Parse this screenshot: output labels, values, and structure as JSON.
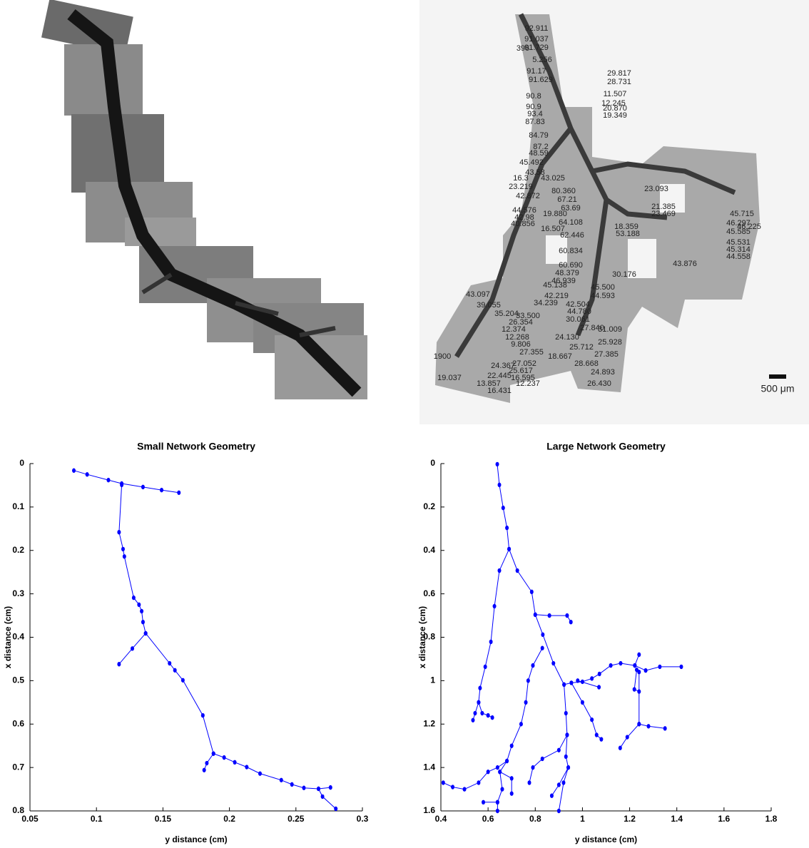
{
  "micrographs": {
    "labels": [
      "92.911",
      "91.037",
      "91.729",
      "396",
      "5.256",
      "91.17",
      "91.629",
      "29.817",
      "28.731",
      "11.507",
      "90.8",
      "12.245",
      "20.870",
      "19.349",
      "90.9",
      "93.4",
      "87.83",
      "84.79",
      "87.2",
      "48.59",
      "45.492",
      "43.58",
      "43.025",
      "16.3",
      "23.219",
      "80.360",
      "67.21",
      "63.69",
      "42.872",
      "44.576",
      "42.98",
      "19.880",
      "40.856",
      "64.108",
      "16.507",
      "62.446",
      "23.093",
      "21.385",
      "23.469",
      "45.715",
      "46.297",
      "46.225",
      "45.585",
      "18.359",
      "53.188",
      "60.834",
      "60.690",
      "48.379",
      "46.939",
      "45.138",
      "45.500",
      "44.593",
      "30.176",
      "45.531",
      "45.314",
      "44.558",
      "43.876",
      "42.219",
      "34.239",
      "42.504",
      "44.780",
      "30.061",
      "43.097",
      "39.055",
      "35.204",
      "33.500",
      "26.354",
      "12.374",
      "12.268",
      "9.806",
      "27.840",
      "31.009",
      "24.130",
      "25.928",
      "25.712",
      "27.355",
      "18.667",
      "27.385",
      "27.052",
      "25.617",
      "24.367",
      "16.595",
      "12.237",
      "28.668",
      "24.893",
      "26.430",
      "22.445",
      "13.857",
      "16.431",
      "19.037",
      "1900"
    ],
    "scale_bar": "500 μm"
  },
  "chart_data": [
    {
      "type": "line",
      "title": "Small Network Geometry",
      "x_label": "y distance (cm)",
      "y_label": "x distance (cm)",
      "y_reversed": true,
      "marker": true,
      "xlim": [
        0.05,
        0.3
      ],
      "ylim": [
        0,
        0.8
      ],
      "xticks": [
        0.05,
        0.1,
        0.15,
        0.2,
        0.25,
        0.3
      ],
      "yticks": [
        0,
        0.1,
        0.2,
        0.3,
        0.4,
        0.5,
        0.6,
        0.7,
        0.8
      ],
      "series": [
        {
          "color": "#0000ff",
          "x": [
            0.083,
            0.093,
            0.109,
            0.119,
            0.135,
            0.149,
            0.162,
            null,
            0.119,
            0.117,
            0.12,
            0.121,
            0.128,
            0.132,
            0.134,
            0.135,
            0.137,
            0.127,
            0.117,
            null,
            0.137,
            0.155,
            0.159,
            0.165,
            0.18,
            0.188,
            0.196,
            0.204,
            0.213,
            0.223,
            0.239,
            0.247,
            0.256,
            0.267,
            0.276,
            null,
            0.267,
            0.27,
            0.28,
            null,
            0.188,
            0.183,
            0.181
          ],
          "values": [
            0.016,
            0.025,
            0.038,
            0.046,
            0.054,
            0.061,
            0.067,
            null,
            0.049,
            0.158,
            0.197,
            0.214,
            0.309,
            0.325,
            0.34,
            0.365,
            0.391,
            0.426,
            0.462,
            null,
            0.391,
            0.46,
            0.476,
            0.499,
            0.58,
            0.668,
            0.677,
            0.688,
            0.699,
            0.714,
            0.729,
            0.739,
            0.747,
            0.749,
            0.746,
            null,
            0.749,
            0.767,
            0.795,
            null,
            0.668,
            0.69,
            0.706
          ]
        }
      ]
    },
    {
      "type": "line",
      "title": "Large Network Geometry",
      "x_label": "y distance (cm)",
      "y_label": "x distance (cm)",
      "y_reversed": true,
      "marker": true,
      "xlim": [
        0.4,
        1.8
      ],
      "ylim": [
        0,
        1.6
      ],
      "xticks": [
        0.4,
        0.6,
        0.8,
        1,
        1.2,
        1.4,
        1.6,
        1.8
      ],
      "yticks": [
        0,
        0.2,
        0.4,
        0.6,
        0.8,
        1,
        1.2,
        1.4,
        1.6
      ],
      "series": [
        {
          "color": "#0000ff",
          "x": [
            0.639,
            0.648,
            0.664,
            0.68,
            0.689,
            0.648,
            0.627,
            0.612,
            0.588,
            0.566,
            0.56,
            0.575,
            0.6,
            0.618,
            null,
            0.56,
            0.545,
            0.536,
            null,
            0.689,
            0.724,
            0.785,
            0.8,
            0.86,
            0.935,
            0.951,
            null,
            0.8,
            0.832,
            0.877,
            0.922,
            0.953,
            1.0,
            1.04,
            1.072,
            1.12,
            1.162,
            1.222,
            1.268,
            1.328,
            1.419,
            null,
            1.222,
            1.24,
            null,
            1.23,
            1.22,
            1.24,
            null,
            1.24,
            1.24,
            1.28,
            1.35,
            null,
            1.24,
            1.19,
            1.16,
            null,
            0.953,
            1.0,
            1.04,
            1.06,
            1.08,
            null,
            0.98,
            1.07,
            null,
            0.83,
            0.79,
            0.77,
            0.76,
            0.74,
            0.7,
            0.68,
            0.64,
            0.6,
            0.56,
            0.5,
            0.45,
            0.41,
            null,
            0.68,
            0.65,
            0.66,
            0.64,
            0.64,
            null,
            0.65,
            0.7,
            0.7,
            null,
            0.64,
            0.58,
            null,
            0.922,
            0.93,
            0.935,
            0.93,
            0.94,
            0.9,
            0.87,
            null,
            0.935,
            0.9,
            0.83,
            0.79,
            0.775,
            null,
            0.94,
            0.92,
            0.9
          ],
          "values": [
            0.003,
            0.098,
            0.204,
            0.296,
            0.394,
            0.493,
            0.657,
            0.821,
            0.936,
            1.034,
            1.1,
            1.15,
            1.16,
            1.17,
            null,
            1.1,
            1.15,
            1.182,
            null,
            0.394,
            0.493,
            0.591,
            0.696,
            0.7,
            0.7,
            0.73,
            null,
            0.696,
            0.788,
            0.92,
            1.018,
            1.01,
            1.005,
            0.99,
            0.969,
            0.93,
            0.92,
            0.93,
            0.953,
            0.936,
            0.936,
            null,
            0.93,
            0.88,
            null,
            0.95,
            1.04,
            1.05,
            null,
            0.96,
            1.2,
            1.21,
            1.22,
            null,
            1.2,
            1.26,
            1.31,
            null,
            1.01,
            1.1,
            1.18,
            1.25,
            1.27,
            null,
            1.0,
            1.03,
            null,
            0.85,
            0.93,
            1.0,
            1.1,
            1.2,
            1.3,
            1.37,
            1.4,
            1.42,
            1.47,
            1.5,
            1.49,
            1.47,
            null,
            1.37,
            1.42,
            1.5,
            1.56,
            1.6,
            null,
            1.42,
            1.45,
            1.52,
            null,
            1.56,
            1.56,
            null,
            1.018,
            1.15,
            1.25,
            1.35,
            1.4,
            1.48,
            1.53,
            null,
            1.25,
            1.32,
            1.36,
            1.4,
            1.47,
            null,
            1.4,
            1.47,
            1.6
          ]
        }
      ]
    }
  ]
}
